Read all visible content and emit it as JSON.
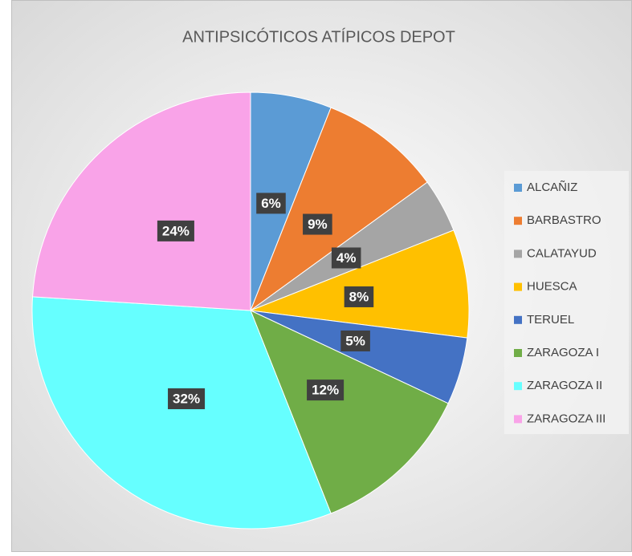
{
  "chart_data": {
    "type": "pie",
    "title": "ANTIPSICÓTICOS ATÍPICOS DEPOT",
    "categories": [
      "ALCAÑIZ",
      "BARBASTRO",
      "CALATAYUD",
      "HUESCA",
      "TERUEL",
      "ZARAGOZA I",
      "ZARAGOZA II",
      "ZARAGOZA III"
    ],
    "values": [
      6,
      9,
      4,
      8,
      5,
      12,
      32,
      24
    ],
    "value_labels": [
      "6%",
      "9%",
      "4%",
      "8%",
      "5%",
      "12%",
      "32%",
      "24%"
    ],
    "colors": [
      "#5b9bd5",
      "#ed7d31",
      "#a5a5a5",
      "#ffc000",
      "#4472c4",
      "#70ad47",
      "#66ffff",
      "#f9a3e8"
    ],
    "legend": "right"
  }
}
